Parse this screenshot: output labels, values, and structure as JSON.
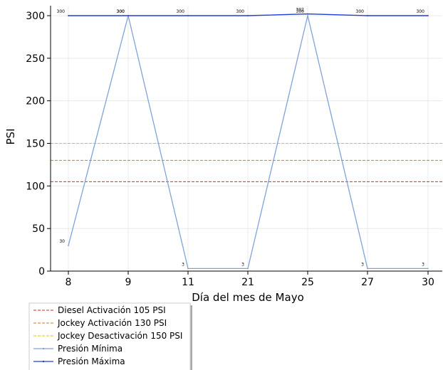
{
  "chart_data": {
    "type": "line",
    "title": "",
    "xlabel": "Día del mes de  Mayo",
    "ylabel": "PSI",
    "categories": [
      "8",
      "9",
      "11",
      "21",
      "25",
      "27",
      "30"
    ],
    "ylim": [
      0,
      310
    ],
    "yticks": [
      0,
      50,
      100,
      150,
      200,
      250,
      300
    ],
    "grid": true,
    "legend_position": "bottom-left outside",
    "reference_lines": [
      {
        "name": "Diesel Activación 105 PSI",
        "value": 105,
        "color": "#d62728"
      },
      {
        "name": "Jockey Activación 130 PSI",
        "value": 130,
        "color": "#d2781e"
      },
      {
        "name": "Jockey Desactivación 150 PSI",
        "value": 150,
        "color": "#e6c200"
      }
    ],
    "series": [
      {
        "name": "Presión Mínima",
        "values": [
          30,
          300,
          3,
          3,
          300,
          3,
          3
        ],
        "labels": [
          "30",
          "300",
          "3",
          "3",
          "300",
          "3",
          "3"
        ],
        "color": "#7fa3d9"
      },
      {
        "name": "Presión Máxima",
        "values": [
          300,
          300,
          300,
          300,
          302,
          300,
          300
        ],
        "labels": [
          "300",
          "300",
          "300",
          "300",
          "302",
          "300",
          "300"
        ],
        "color": "#1f3fd9"
      }
    ]
  }
}
